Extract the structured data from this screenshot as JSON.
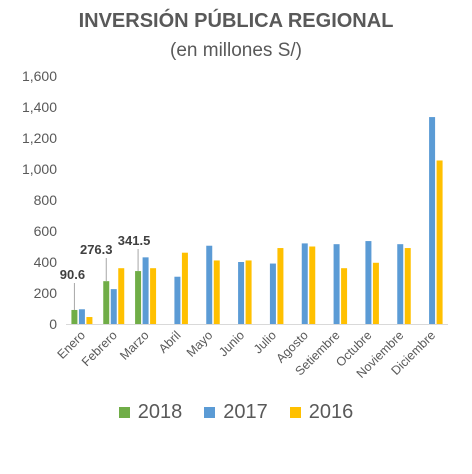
{
  "chart_data": {
    "type": "bar",
    "title": "INVERSIÓN PÚBLICA REGIONAL",
    "subtitle": "(en millones S/)",
    "xlabel": "",
    "ylabel": "",
    "ylim": [
      0,
      1600
    ],
    "yticks": [
      0,
      200,
      400,
      600,
      800,
      1000,
      1200,
      1400,
      1600
    ],
    "ytick_labels": [
      "0",
      "200",
      "400",
      "600",
      "800",
      "1,000",
      "1,200",
      "1,400",
      "1,600"
    ],
    "grid": false,
    "legend_position": "bottom",
    "categories": [
      "Enero",
      "Febrero",
      "Marzo",
      "Abril",
      "Mayo",
      "Junio",
      "Julio",
      "Agosto",
      "Setiembre",
      "Octubre",
      "Noviembre",
      "Diciembre"
    ],
    "series": [
      {
        "name": "2018",
        "color": "#70ad47",
        "values": [
          90.6,
          276.3,
          341.5,
          null,
          null,
          null,
          null,
          null,
          null,
          null,
          null,
          null
        ],
        "data_labels": [
          "90.6",
          "276.3",
          "341.5",
          "",
          "",
          "",
          "",
          "",
          "",
          "",
          "",
          ""
        ]
      },
      {
        "name": "2017",
        "color": "#5b9bd5",
        "values": [
          95,
          225,
          430,
          305,
          505,
          400,
          390,
          520,
          515,
          535,
          515,
          1335
        ]
      },
      {
        "name": "2016",
        "color": "#ffc000",
        "values": [
          45,
          360,
          360,
          460,
          410,
          410,
          490,
          500,
          360,
          395,
          490,
          1055
        ]
      }
    ]
  }
}
